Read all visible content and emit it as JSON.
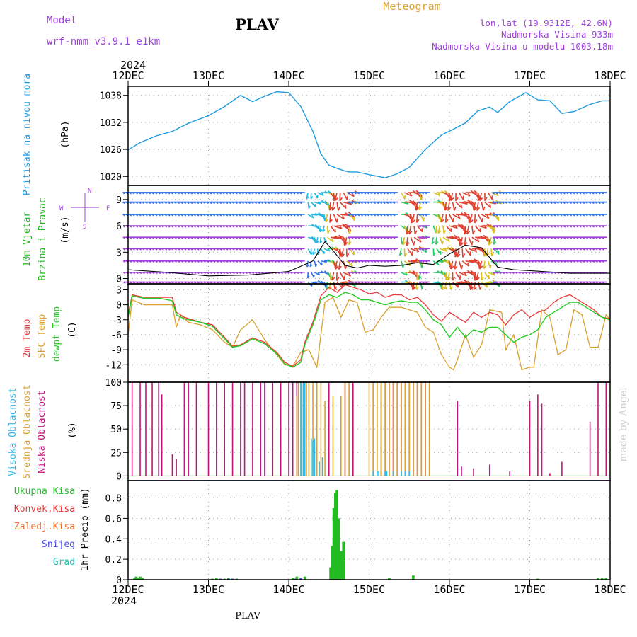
{
  "header": {
    "model_label": "Model",
    "model_name": "wrf-nmm_v3.9.1  e1km",
    "station": "PLAV",
    "meteogram": "Meteogram",
    "lonlat": "lon,lat (19.9312E, 42.6N)",
    "elev": "Nadmorska Visina 933m",
    "elev_model": "Nadmorska Visina u modelu 1003.18m",
    "year": "2024",
    "footer_station": "PLAV",
    "made_by": "made by Angel"
  },
  "colors": {
    "pressure": "#1e9be0",
    "temp2m": "#e8393a",
    "sfc": "#dba030",
    "dewpt": "#22cc22",
    "high": "#30b8e8",
    "mid": "#dba030",
    "low": "#c0157a",
    "total": "#22bb22",
    "conv": "#e8393a",
    "freez": "#f07030",
    "snow": "#4a4aee",
    "grad": "#20c0b0",
    "purple": "#a040e0",
    "wind_label": "#22bb22"
  },
  "labels": {
    "pressure": [
      "Pritisak na nivou mora",
      "(hPa)"
    ],
    "wind": [
      "10m Vjetar",
      "Brzina i Pravac",
      "(m/s)"
    ],
    "compass": [
      "N",
      "E",
      "S",
      "W"
    ],
    "temp": [
      "2m Temp",
      "SFC Temp",
      "dewpt Temp",
      "(C)"
    ],
    "cloud": [
      "Visoka Oblacnost",
      "Srednja Oblacnost",
      "Niska Oblacnost",
      "(%)"
    ],
    "precip": [
      "1hr Precip (mm)"
    ],
    "precip_legend": [
      "Ukupna Kisa",
      "Konvek.Kisa",
      "Zaledj.Kisa",
      "Snijeg",
      "Grad"
    ]
  },
  "chart_data": [
    {
      "type": "line",
      "title": "Pritisak na nivou mora",
      "ylabel": "(hPa)",
      "x_ticks": [
        "12DEC",
        "13DEC",
        "14DEC",
        "15DEC",
        "16DEC",
        "17DEC",
        "18DEC"
      ],
      "xlim": [
        0,
        6
      ],
      "ylim": [
        1018,
        1040
      ],
      "y_ticks": [
        1020,
        1026,
        1032,
        1038
      ],
      "grid": true,
      "series": [
        {
          "name": "Pritisak na nivou mora",
          "x": [
            0,
            0.15,
            0.35,
            0.55,
            0.75,
            1.0,
            1.2,
            1.4,
            1.55,
            1.7,
            1.85,
            2.0,
            2.15,
            2.3,
            2.4,
            2.5,
            2.6,
            2.7,
            2.75,
            2.85,
            3.0,
            3.2,
            3.35,
            3.5,
            3.6,
            3.7,
            3.9,
            4.05,
            4.2,
            4.35,
            4.5,
            4.6,
            4.75,
            4.95,
            5.1,
            5.25,
            5.4,
            5.55,
            5.75,
            5.9,
            6.0
          ],
          "values": [
            1025.9,
            1027.5,
            1029.0,
            1030.0,
            1031.8,
            1033.5,
            1035.5,
            1038.0,
            1036.6,
            1037.8,
            1038.8,
            1038.6,
            1035.5,
            1030.0,
            1025.0,
            1022.5,
            1021.8,
            1021.2,
            1021.0,
            1021.0,
            1020.4,
            1019.7,
            1020.6,
            1022.0,
            1024.0,
            1026.0,
            1029.2,
            1030.5,
            1031.9,
            1034.5,
            1035.4,
            1034.2,
            1036.6,
            1038.6,
            1037.0,
            1036.8,
            1034.0,
            1034.4,
            1036.0,
            1036.8,
            1036.8
          ]
        }
      ]
    },
    {
      "type": "line",
      "title": "10m Vjetar Brzina i Pravac",
      "ylabel": "(m/s)",
      "xlim": [
        0,
        6
      ],
      "ylim": [
        -0.6,
        10.6
      ],
      "y_ticks": [
        0,
        3,
        6,
        9
      ],
      "grid": true,
      "series": [
        {
          "name": "",
          "x": [
            0,
            0.5,
            1.0,
            1.5,
            2.0,
            2.3,
            2.45,
            2.55,
            2.7,
            2.85,
            3.0,
            3.2,
            3.4,
            3.6,
            3.8,
            4.0,
            4.2,
            4.4,
            4.6,
            4.8,
            5.0,
            5.5,
            6.0
          ],
          "values": [
            1.0,
            0.7,
            0.3,
            0.4,
            0.8,
            2.0,
            4.2,
            3.2,
            1.5,
            1.2,
            1.5,
            1.4,
            1.5,
            1.8,
            1.6,
            2.8,
            3.8,
            3.5,
            1.3,
            1.0,
            0.9,
            0.6,
            0.6
          ]
        }
      ]
    },
    {
      "type": "line",
      "title": "2m Temp / SFC Temp / dewpt Temp",
      "ylabel": "(C)",
      "xlim": [
        0,
        6
      ],
      "ylim": [
        -15.5,
        4.2
      ],
      "y_ticks": [
        -12,
        -9,
        -6,
        -3,
        0,
        3
      ],
      "grid": true,
      "series": [
        {
          "name": "2m Temp",
          "x": [
            0,
            0.05,
            0.2,
            0.4,
            0.55,
            0.6,
            0.7,
            0.9,
            1.05,
            1.2,
            1.3,
            1.4,
            1.55,
            1.7,
            1.85,
            1.95,
            2.05,
            2.15,
            2.2,
            2.3,
            2.4,
            2.5,
            2.6,
            2.7,
            2.8,
            2.9,
            3.0,
            3.1,
            3.2,
            3.3,
            3.4,
            3.5,
            3.6,
            3.7,
            3.8,
            3.9,
            4.0,
            4.1,
            4.2,
            4.3,
            4.4,
            4.5,
            4.6,
            4.7,
            4.8,
            4.9,
            5.0,
            5.1,
            5.2,
            5.3,
            5.4,
            5.5,
            5.6,
            5.7,
            5.8,
            5.9,
            6.0
          ],
          "values": [
            -2.0,
            2.0,
            1.5,
            1.5,
            1.5,
            -1.5,
            -2.5,
            -3.5,
            -4.0,
            -6.5,
            -8.3,
            -8.0,
            -6.6,
            -7.5,
            -9.5,
            -11.5,
            -12.3,
            -11.0,
            -7.5,
            -3.5,
            1.8,
            3.5,
            2.5,
            4.0,
            3.5,
            3.0,
            2.2,
            2.5,
            1.5,
            2.0,
            2.0,
            1.0,
            1.5,
            0.0,
            -2.0,
            -3.3,
            -1.5,
            -2.5,
            -3.5,
            -1.5,
            -2.5,
            -1.5,
            -2.0,
            -4.0,
            -2.0,
            -1.0,
            -2.5,
            -1.5,
            -1.0,
            0.5,
            1.5,
            2.0,
            1.0,
            0.0,
            -1.0,
            -2.5,
            -2.8
          ]
        },
        {
          "name": "SFC Temp",
          "x": [
            0,
            0.05,
            0.2,
            0.4,
            0.55,
            0.6,
            0.65,
            0.75,
            0.9,
            1.05,
            1.2,
            1.3,
            1.4,
            1.55,
            1.7,
            1.85,
            1.95,
            2.05,
            2.15,
            2.25,
            2.35,
            2.45,
            2.55,
            2.65,
            2.75,
            2.85,
            2.95,
            3.05,
            3.15,
            3.25,
            3.4,
            3.5,
            3.6,
            3.7,
            3.8,
            3.9,
            4.0,
            4.05,
            4.1,
            4.2,
            4.3,
            4.4,
            4.5,
            4.65,
            4.7,
            4.8,
            4.9,
            5.0,
            5.05,
            5.15,
            5.25,
            5.35,
            5.45,
            5.55,
            5.65,
            5.75,
            5.85,
            5.95,
            6.0
          ],
          "values": [
            -6.0,
            1.0,
            0.0,
            0.0,
            0.0,
            -4.5,
            -2.0,
            -3.5,
            -4.0,
            -5.0,
            -7.5,
            -8.5,
            -5.0,
            -3.0,
            -7.0,
            -10.0,
            -12.0,
            -12.3,
            -9.5,
            -9.0,
            -12.5,
            0.5,
            1.5,
            -2.5,
            1.0,
            0.5,
            -5.5,
            -5.0,
            -2.5,
            -0.5,
            -0.5,
            -1.0,
            -1.5,
            -4.5,
            -5.5,
            -10.0,
            -12.5,
            -13.0,
            -11.0,
            -6.0,
            -10.5,
            -8.0,
            -1.0,
            -1.5,
            -9.0,
            -6.0,
            -13.0,
            -12.5,
            -12.5,
            -1.0,
            -2.5,
            -10.0,
            -9.0,
            -1.0,
            -2.0,
            -8.5,
            -8.5,
            -2.0,
            -3.0
          ]
        },
        {
          "name": "dewpt Temp",
          "x": [
            0,
            0.05,
            0.2,
            0.4,
            0.55,
            0.6,
            0.7,
            0.9,
            1.05,
            1.2,
            1.3,
            1.4,
            1.55,
            1.7,
            1.85,
            1.95,
            2.05,
            2.15,
            2.2,
            2.3,
            2.4,
            2.5,
            2.6,
            2.7,
            2.8,
            2.9,
            3.0,
            3.1,
            3.2,
            3.3,
            3.4,
            3.5,
            3.6,
            3.7,
            3.8,
            3.9,
            4.0,
            4.1,
            4.2,
            4.3,
            4.4,
            4.5,
            4.6,
            4.7,
            4.8,
            4.9,
            5.0,
            5.1,
            5.2,
            5.3,
            5.4,
            5.5,
            5.6,
            5.7,
            5.8,
            5.9,
            6.0
          ],
          "values": [
            -2.5,
            1.8,
            1.3,
            1.3,
            0.8,
            -2.0,
            -2.8,
            -3.5,
            -4.3,
            -6.8,
            -8.5,
            -8.2,
            -6.8,
            -7.8,
            -9.8,
            -11.8,
            -12.5,
            -11.5,
            -8.0,
            -4.0,
            1.0,
            2.0,
            1.5,
            2.5,
            2.0,
            1.0,
            1.0,
            0.5,
            0.0,
            0.5,
            0.8,
            0.5,
            0.5,
            -1.0,
            -3.0,
            -4.0,
            -6.5,
            -4.5,
            -6.5,
            -5.0,
            -5.5,
            -4.5,
            -4.5,
            -6.0,
            -7.5,
            -6.5,
            -6.0,
            -5.0,
            -2.5,
            -1.5,
            -0.5,
            0.5,
            0.5,
            -0.5,
            -1.5,
            -2.5,
            -3.0
          ]
        }
      ]
    },
    {
      "type": "bar",
      "title": "Oblacnost",
      "ylabel": "(%)",
      "xlim": [
        0,
        6
      ],
      "ylim": [
        -5,
        100
      ],
      "y_ticks": [
        0,
        25,
        50,
        75,
        100
      ],
      "grid": true,
      "series": [
        {
          "name": "Niska Oblacnost",
          "x": [
            0.05,
            0.15,
            0.22,
            0.3,
            0.38,
            0.42,
            0.55,
            0.6,
            0.7,
            0.75,
            0.85,
            1.0,
            1.1,
            1.2,
            1.3,
            1.4,
            1.45,
            1.55,
            1.65,
            1.7,
            1.8,
            1.9,
            2.0,
            2.05,
            2.1,
            2.5,
            2.7,
            2.8,
            3.15,
            3.2,
            3.25,
            3.3,
            3.35,
            3.4,
            3.45,
            3.5,
            3.55,
            3.6,
            3.65,
            3.7,
            4.1,
            4.15,
            4.3,
            4.5,
            4.75,
            5.0,
            5.1,
            5.15,
            5.25,
            5.4,
            5.75,
            5.85,
            5.95
          ],
          "values": [
            100,
            100,
            100,
            100,
            100,
            87,
            23,
            18,
            100,
            100,
            100,
            100,
            100,
            100,
            100,
            100,
            100,
            100,
            100,
            100,
            100,
            100,
            100,
            100,
            100,
            100,
            100,
            100,
            100,
            100,
            100,
            100,
            100,
            100,
            100,
            100,
            100,
            100,
            100,
            100,
            80,
            10,
            8,
            12,
            5,
            80,
            87,
            77,
            3,
            15,
            58,
            100,
            100
          ]
        },
        {
          "name": "Srednja Oblacnost",
          "x": [
            2.1,
            2.12,
            2.15,
            2.2,
            2.22,
            2.25,
            2.3,
            2.35,
            2.4,
            2.45,
            2.55,
            2.65,
            2.7,
            2.75,
            3.0,
            3.05,
            3.1,
            3.15,
            3.2,
            3.25,
            3.3,
            3.35,
            3.4,
            3.45,
            3.5,
            3.55,
            3.6,
            3.65,
            3.7,
            3.75
          ],
          "values": [
            85,
            100,
            100,
            100,
            100,
            100,
            100,
            100,
            100,
            80,
            85,
            85,
            100,
            100,
            100,
            100,
            100,
            100,
            100,
            100,
            100,
            100,
            100,
            100,
            100,
            100,
            100,
            100,
            100,
            100
          ]
        },
        {
          "name": "Visoka Oblacnost",
          "x": [
            2.15,
            2.18,
            2.2,
            2.28,
            2.3,
            2.32,
            2.38,
            2.42,
            3.05,
            3.1,
            3.12,
            3.2,
            3.22,
            3.3,
            3.4,
            3.45,
            3.5
          ],
          "values": [
            100,
            100,
            100,
            40,
            38,
            40,
            15,
            20,
            5,
            5,
            5,
            5,
            5,
            5,
            5,
            5,
            5
          ]
        }
      ]
    },
    {
      "type": "bar",
      "title": "1hr Precip",
      "ylabel": "1hr Precip (mm)",
      "x_ticks": [
        "12DEC",
        "13DEC",
        "14DEC",
        "15DEC",
        "16DEC",
        "17DEC",
        "18DEC"
      ],
      "xlim": [
        0,
        6
      ],
      "ylim": [
        0,
        0.97
      ],
      "y_ticks": [
        0,
        0.2,
        0.4,
        0.6,
        0.8
      ],
      "grid": true,
      "series": [
        {
          "name": "Ukupna Kisa",
          "x": [
            0.08,
            0.1,
            0.12,
            0.15,
            0.18,
            1.05,
            1.1,
            1.2,
            1.25,
            1.3,
            1.35,
            2.05,
            2.1,
            2.2,
            2.52,
            2.54,
            2.56,
            2.58,
            2.6,
            2.62,
            2.65,
            2.68,
            3.25,
            3.55,
            5.1,
            5.85,
            5.9,
            5.95
          ],
          "values": [
            0.02,
            0.03,
            0.02,
            0.03,
            0.02,
            0.01,
            0.02,
            0.01,
            0.02,
            0.01,
            0.01,
            0.02,
            0.03,
            0.03,
            0.12,
            0.33,
            0.7,
            0.85,
            0.88,
            0.6,
            0.28,
            0.37,
            0.02,
            0.04,
            0.01,
            0.02,
            0.02,
            0.02
          ]
        },
        {
          "name": "Konvek.Kisa",
          "x": [],
          "values": []
        },
        {
          "name": "Zaledj.Kisa",
          "x": [],
          "values": []
        },
        {
          "name": "Snijeg",
          "x": [
            1.15,
            1.25,
            1.3,
            2.08,
            2.15
          ],
          "values": [
            0.01,
            0.01,
            0.01,
            0.01,
            0.02
          ]
        },
        {
          "name": "Grad",
          "x": [],
          "values": []
        }
      ]
    }
  ]
}
